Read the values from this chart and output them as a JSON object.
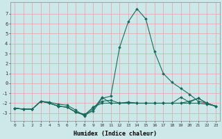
{
  "xlabel": "Humidex (Indice chaleur)",
  "x": [
    0,
    1,
    2,
    3,
    4,
    5,
    6,
    7,
    8,
    9,
    10,
    11,
    12,
    13,
    14,
    15,
    16,
    17,
    18,
    19,
    20,
    21,
    22,
    23
  ],
  "lines": [
    [
      -2.5,
      -2.6,
      -2.6,
      -1.8,
      -1.9,
      -2.1,
      -2.2,
      -2.7,
      -3.3,
      -2.6,
      -1.4,
      -2.0,
      -2.0,
      -2.0,
      -2.0,
      -2.0,
      -2.0,
      -2.0,
      -2.0,
      -2.0,
      -2.0,
      -2.0,
      -2.1,
      -2.3
    ],
    [
      -2.5,
      -2.6,
      -2.6,
      -1.8,
      -2.0,
      -2.3,
      -2.4,
      -2.9,
      -3.1,
      -2.8,
      -1.5,
      -1.3,
      3.6,
      6.2,
      7.5,
      6.5,
      3.2,
      1.0,
      0.1,
      -0.5,
      -1.1,
      -1.8,
      -2.0,
      -2.3
    ],
    [
      -2.5,
      -2.6,
      -2.6,
      -1.8,
      -2.0,
      -2.3,
      -2.4,
      -2.9,
      -3.2,
      -2.4,
      -2.0,
      -2.0,
      -2.0,
      -1.9,
      -2.0,
      -2.0,
      -2.0,
      -2.0,
      -2.0,
      -2.0,
      -1.8,
      -1.5,
      -2.0,
      -2.3
    ],
    [
      -2.5,
      -2.6,
      -2.6,
      -1.8,
      -2.0,
      -2.3,
      -2.4,
      -2.9,
      -3.2,
      -2.4,
      -1.8,
      -1.7,
      -2.0,
      -1.9,
      -2.0,
      -2.0,
      -2.0,
      -2.0,
      -2.0,
      -1.4,
      -1.9,
      -1.5,
      -2.0,
      -2.3
    ]
  ],
  "line_color": "#1a6b5c",
  "bg_color": "#cce8e8",
  "grid_color": "#e8a0a0",
  "ylim": [
    -3.8,
    8.2
  ],
  "yticks": [
    -3,
    -2,
    -1,
    0,
    1,
    2,
    3,
    4,
    5,
    6,
    7
  ],
  "marker": "D",
  "markersize": 1.8,
  "linewidth": 0.8
}
